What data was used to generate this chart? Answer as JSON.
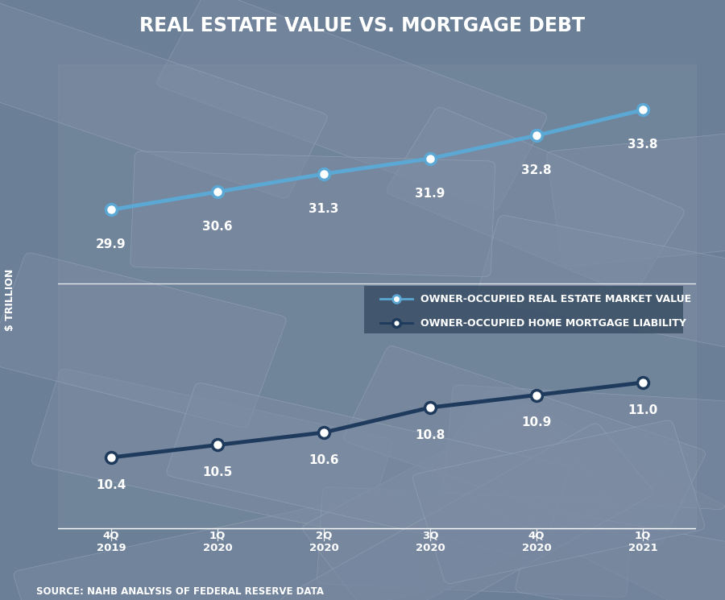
{
  "title": "REAL ESTATE VALUE VS. MORTGAGE DEBT",
  "source": "SOURCE: NAHB ANALYSIS OF FEDERAL RESERVE DATA",
  "ylabel": "$ TRILLION",
  "x_labels": [
    "4Q\n2019",
    "1Q\n2020",
    "2Q\n2020",
    "3Q\n2020",
    "4Q\n2020",
    "1Q\n2021"
  ],
  "x_positions": [
    0,
    1,
    2,
    3,
    4,
    5
  ],
  "real_estate_values": [
    29.9,
    30.6,
    31.3,
    31.9,
    32.8,
    33.8
  ],
  "mortgage_values": [
    10.4,
    10.5,
    10.6,
    10.8,
    10.9,
    11.0
  ],
  "real_estate_color": "#5ba8d4",
  "mortgage_color": "#1e3a5c",
  "line_width": 3.5,
  "marker_size": 10,
  "marker_edge_width": 2.5,
  "legend_label_1": "OWNER-OCCUPIED REAL ESTATE MARKET VALUE",
  "legend_label_2": "OWNER-OCCUPIED HOME MORTGAGE LIABILITY",
  "bg_color": "#6b7f96",
  "title_bg": "#2a3a50",
  "legend_bg": "#3a4f65",
  "separator_color": "#a0b0c0",
  "text_color": "white",
  "title_fontsize": 17,
  "label_fontsize": 9,
  "tick_fontsize": 9.5,
  "value_fontsize": 11,
  "source_fontsize": 8.5,
  "legend_fontsize": 9
}
